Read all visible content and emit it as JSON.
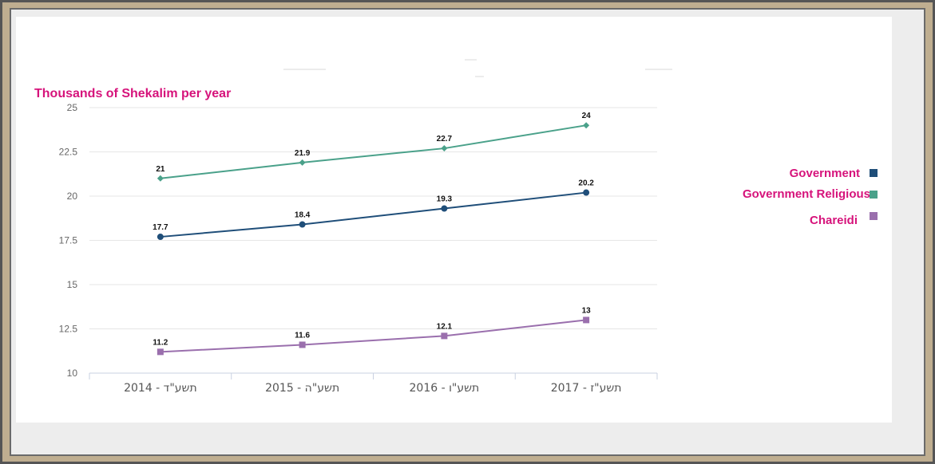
{
  "chart_data": {
    "type": "line",
    "ylabel": "Thousands of Shekalim per year",
    "categories": [
      "תשע\"ד - 2014",
      "תשע\"ה - 2015",
      "תשע\"ו - 2016",
      "תשע\"ז - 2017"
    ],
    "ylim": [
      10,
      25
    ],
    "yticks": [
      "25",
      "22.5",
      "20",
      "17.5",
      "15",
      "12.5",
      "10"
    ],
    "grid": true,
    "legend_placement": "right",
    "series": [
      {
        "name": "Government",
        "values": [
          17.7,
          18.4,
          19.3,
          20.2
        ],
        "labels": [
          "17.7",
          "18.4",
          "19.3",
          "20.2"
        ],
        "color": "#1f4e79",
        "marker": "circle"
      },
      {
        "name": "Government Religious",
        "values": [
          21,
          21.9,
          22.7,
          24
        ],
        "labels": [
          "21",
          "21.9",
          "22.7",
          "24"
        ],
        "color": "#4aa18a",
        "marker": "diamond"
      },
      {
        "name": "Chareidi",
        "values": [
          11.2,
          11.6,
          12.1,
          13
        ],
        "labels": [
          "11.2",
          "11.6",
          "12.1",
          "13"
        ],
        "color": "#9a6fad",
        "marker": "square"
      }
    ]
  }
}
